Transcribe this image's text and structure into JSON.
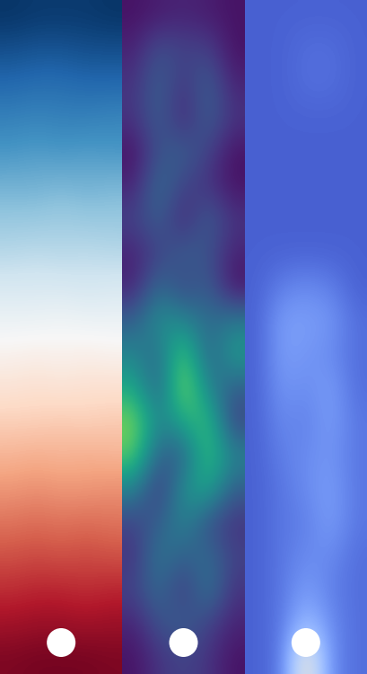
{
  "chart_data": [
    {
      "type": "heatmap",
      "color": "RdBu_r",
      "clim": [
        0,
        1
      ],
      "tick_labels": false,
      "cells": [
        [
          0.01,
          0.02,
          0.02,
          0.02,
          0.01
        ],
        [
          0.06,
          0.07,
          0.07,
          0.06,
          0.06
        ],
        [
          0.11,
          0.12,
          0.12,
          0.11,
          0.11
        ],
        [
          0.16,
          0.17,
          0.16,
          0.16,
          0.17
        ],
        [
          0.21,
          0.22,
          0.21,
          0.22,
          0.21
        ],
        [
          0.26,
          0.26,
          0.27,
          0.26,
          0.27
        ],
        [
          0.31,
          0.31,
          0.32,
          0.31,
          0.31
        ],
        [
          0.36,
          0.37,
          0.36,
          0.37,
          0.36
        ],
        [
          0.42,
          0.42,
          0.42,
          0.41,
          0.42
        ],
        [
          0.47,
          0.47,
          0.48,
          0.47,
          0.47
        ],
        [
          0.52,
          0.53,
          0.52,
          0.53,
          0.52
        ],
        [
          0.57,
          0.58,
          0.57,
          0.58,
          0.58
        ],
        [
          0.62,
          0.62,
          0.63,
          0.62,
          0.63
        ],
        [
          0.67,
          0.68,
          0.67,
          0.68,
          0.67
        ],
        [
          0.72,
          0.73,
          0.72,
          0.72,
          0.73
        ],
        [
          0.77,
          0.78,
          0.77,
          0.78,
          0.77
        ],
        [
          0.82,
          0.83,
          0.82,
          0.83,
          0.82
        ],
        [
          0.87,
          0.88,
          0.88,
          0.87,
          0.88
        ],
        [
          0.92,
          0.93,
          0.93,
          0.92,
          0.93
        ],
        [
          0.97,
          0.98,
          0.98,
          0.98,
          0.97
        ]
      ]
    },
    {
      "type": "heatmap",
      "color": "viridis",
      "clim": [
        0,
        1
      ],
      "tick_labels": false,
      "cells": [
        [
          0.05,
          0.08,
          0.1,
          0.08,
          0.05
        ],
        [
          0.1,
          0.25,
          0.2,
          0.2,
          0.05
        ],
        [
          0.15,
          0.3,
          0.15,
          0.3,
          0.1
        ],
        [
          0.15,
          0.3,
          0.1,
          0.3,
          0.15
        ],
        [
          0.05,
          0.25,
          0.3,
          0.2,
          0.05
        ],
        [
          0.1,
          0.35,
          0.2,
          0.15,
          0.05
        ],
        [
          0.2,
          0.3,
          0.1,
          0.3,
          0.15
        ],
        [
          0.1,
          0.2,
          0.3,
          0.25,
          0.1
        ],
        [
          0.1,
          0.35,
          0.2,
          0.3,
          0.05
        ],
        [
          0.3,
          0.5,
          0.45,
          0.35,
          0.4
        ],
        [
          0.45,
          0.35,
          0.75,
          0.3,
          0.55
        ],
        [
          0.6,
          0.3,
          0.85,
          0.45,
          0.3
        ],
        [
          0.8,
          0.45,
          0.6,
          0.7,
          0.2
        ],
        [
          0.75,
          0.3,
          0.3,
          0.7,
          0.45
        ],
        [
          0.45,
          0.15,
          0.5,
          0.6,
          0.3
        ],
        [
          0.2,
          0.3,
          0.45,
          0.25,
          0.15
        ],
        [
          0.15,
          0.4,
          0.3,
          0.35,
          0.2
        ],
        [
          0.2,
          0.35,
          0.15,
          0.4,
          0.15
        ],
        [
          0.1,
          0.25,
          0.3,
          0.2,
          0.1
        ],
        [
          0.05,
          0.15,
          0.2,
          0.15,
          0.05
        ]
      ]
    },
    {
      "type": "heatmap",
      "color": "coolwarm",
      "clim": [
        0,
        1
      ],
      "tick_labels": false,
      "cells": [
        [
          0.05,
          0.05,
          0.05,
          0.05,
          0.05
        ],
        [
          0.05,
          0.05,
          0.08,
          0.08,
          0.05
        ],
        [
          0.05,
          0.05,
          0.08,
          0.08,
          0.05
        ],
        [
          0.05,
          0.05,
          0.05,
          0.05,
          0.05
        ],
        [
          0.05,
          0.05,
          0.05,
          0.05,
          0.05
        ],
        [
          0.05,
          0.05,
          0.05,
          0.05,
          0.05
        ],
        [
          0.05,
          0.05,
          0.05,
          0.05,
          0.05
        ],
        [
          0.05,
          0.05,
          0.05,
          0.05,
          0.05
        ],
        [
          0.05,
          0.12,
          0.15,
          0.12,
          0.05
        ],
        [
          0.05,
          0.2,
          0.2,
          0.18,
          0.08
        ],
        [
          0.05,
          0.2,
          0.18,
          0.15,
          0.08
        ],
        [
          0.05,
          0.18,
          0.15,
          0.2,
          0.08
        ],
        [
          0.05,
          0.15,
          0.12,
          0.2,
          0.1
        ],
        [
          0.05,
          0.12,
          0.15,
          0.18,
          0.1
        ],
        [
          0.05,
          0.1,
          0.15,
          0.2,
          0.1
        ],
        [
          0.05,
          0.1,
          0.12,
          0.2,
          0.1
        ],
        [
          0.05,
          0.1,
          0.15,
          0.15,
          0.08
        ],
        [
          0.05,
          0.1,
          0.2,
          0.12,
          0.08
        ],
        [
          0.05,
          0.1,
          0.3,
          0.15,
          0.08
        ],
        [
          0.05,
          0.1,
          0.6,
          0.15,
          0.08
        ]
      ]
    }
  ]
}
